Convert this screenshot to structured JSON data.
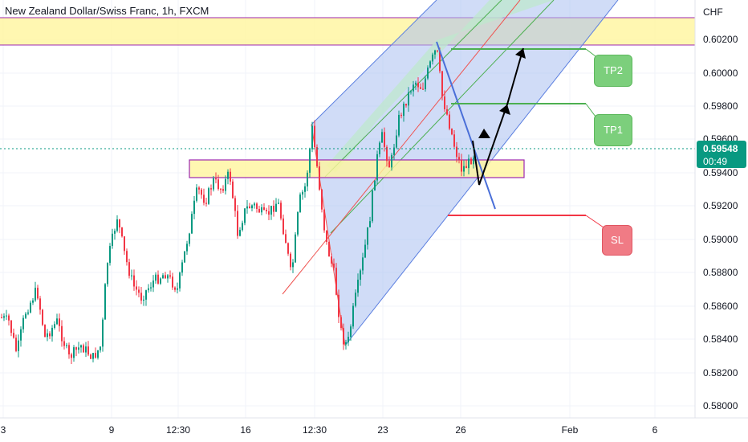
{
  "header": {
    "title": "New Zealand Dollar/Swiss Franc, 1h, FXCM"
  },
  "axis": {
    "currency": "CHF",
    "y_ticks": [
      "0.60200",
      "0.60000",
      "0.59800",
      "0.59600",
      "0.59400",
      "0.59200",
      "0.59000",
      "0.58800",
      "0.58600",
      "0.58400",
      "0.58200",
      "0.58000"
    ],
    "x_ticks": [
      "3",
      "9",
      "12:30",
      "16",
      "12:30",
      "23",
      "26",
      "Feb",
      "6"
    ]
  },
  "price_tag": {
    "price": "0.59548",
    "countdown": "00:49",
    "color": "#089981"
  },
  "annotations": {
    "tp2": {
      "label": "TP2",
      "color": "#7ccf7c"
    },
    "tp1": {
      "label": "TP1",
      "color": "#7ccf7c"
    },
    "sl": {
      "label": "SL",
      "color": "#f07b85"
    }
  },
  "colors": {
    "up": "#089981",
    "down": "#f23645",
    "zone_fill": "#fff59d",
    "zone_border": "#9c27b0",
    "channel_fill": "#b3c6f5",
    "channel_mid": "#b7e4c7"
  },
  "chart_data": {
    "type": "candlestick",
    "symbol": "New Zealand Dollar/Swiss Franc",
    "interval": "1h",
    "ylim": [
      0.5795,
      0.6035
    ],
    "last_price": 0.59548
  }
}
